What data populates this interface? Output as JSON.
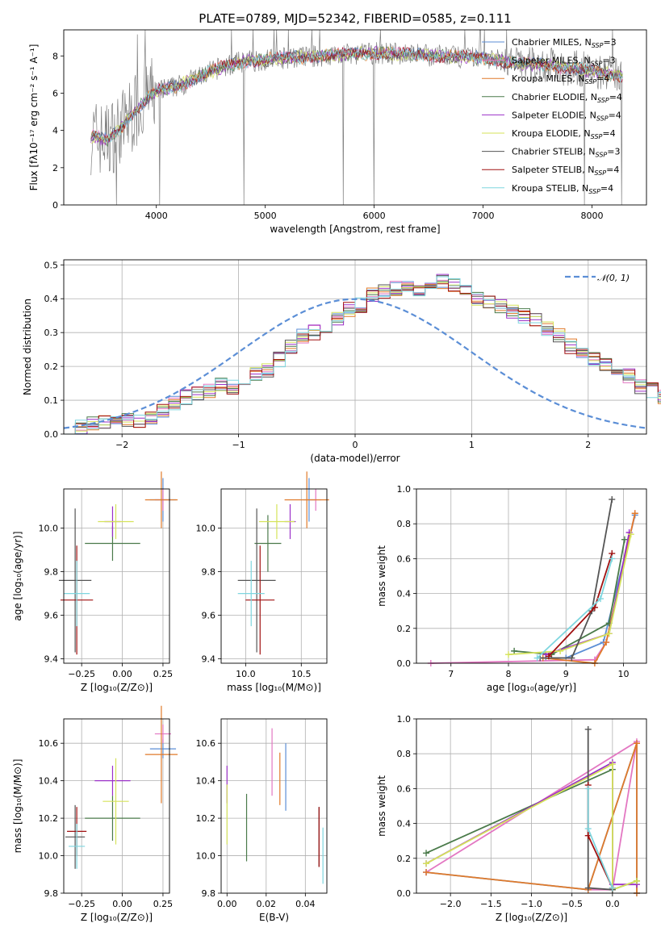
{
  "title": "PLATE=0789, MJD=52342, FIBERID=0585, z=0.111",
  "palette": {
    "chabrier_miles": "#5b8ed6",
    "salpeter_miles": "#e377c2",
    "kroupa_miles": "#e07a2a",
    "chabrier_elodie": "#4a7a4a",
    "salpeter_elodie": "#9b30c8",
    "kroupa_elodie": "#d5e35a",
    "chabrier_stelib": "#555555",
    "salpeter_stelib": "#a01010",
    "kroupa_stelib": "#7ed6df",
    "data": "#808080",
    "gauss": "#5b8ed6"
  },
  "chart_data": [
    {
      "id": "spectrum",
      "type": "line",
      "xlabel": "wavelength [Angstrom, rest frame]",
      "ylabel": "Flux [fλ10⁻¹⁷ erg cm⁻² s⁻¹ A⁻¹]",
      "xlim": [
        3150,
        8500
      ],
      "ylim": [
        0,
        9.4
      ],
      "xticks": [
        "4000",
        "5000",
        "6000",
        "7000",
        "8000"
      ],
      "yticks": [
        "0",
        "2",
        "4",
        "6",
        "8"
      ],
      "grid": false,
      "legend_position": "top-right",
      "continuum_points": [
        [
          3400,
          3.7
        ],
        [
          3550,
          3.5
        ],
        [
          3700,
          4.3
        ],
        [
          3800,
          5.0
        ],
        [
          3900,
          5.6
        ],
        [
          4000,
          6.1
        ],
        [
          4200,
          6.4
        ],
        [
          4400,
          6.9
        ],
        [
          4600,
          7.4
        ],
        [
          4800,
          7.7
        ],
        [
          5000,
          7.8
        ],
        [
          5200,
          7.9
        ],
        [
          5500,
          8.0
        ],
        [
          5800,
          8.1
        ],
        [
          6000,
          8.15
        ],
        [
          6300,
          8.1
        ],
        [
          6600,
          8.0
        ],
        [
          7000,
          7.9
        ],
        [
          7300,
          7.6
        ],
        [
          7600,
          7.5
        ],
        [
          8000,
          7.2
        ],
        [
          8280,
          6.9
        ]
      ],
      "series": [
        {
          "label": "Chabrier MILES, N",
          "sub": "SSP",
          "suffix": "=3",
          "color_key": "chabrier_miles"
        },
        {
          "label": "Salpeter MILES, N",
          "sub": "SSP",
          "suffix": "=3",
          "color_key": "salpeter_miles"
        },
        {
          "label": "Kroupa MILES, N",
          "sub": "SSP",
          "suffix": "=4",
          "color_key": "kroupa_miles"
        },
        {
          "label": "Chabrier ELODIE, N",
          "sub": "SSP",
          "suffix": "=4",
          "color_key": "chabrier_elodie"
        },
        {
          "label": "Salpeter ELODIE, N",
          "sub": "SSP",
          "suffix": "=4",
          "color_key": "salpeter_elodie"
        },
        {
          "label": "Kroupa ELODIE, N",
          "sub": "SSP",
          "suffix": "=4",
          "color_key": "kroupa_elodie"
        },
        {
          "label": "Chabrier STELIB, N",
          "sub": "SSP",
          "suffix": "=3",
          "color_key": "chabrier_stelib"
        },
        {
          "label": "Salpeter STELIB, N",
          "sub": "SSP",
          "suffix": "=4",
          "color_key": "salpeter_stelib"
        },
        {
          "label": "Kroupa STELIB, N",
          "sub": "SSP",
          "suffix": "=4",
          "color_key": "kroupa_stelib"
        }
      ]
    },
    {
      "id": "residuals",
      "type": "line",
      "xlabel": "(data-model)/error",
      "ylabel": "Normed distribution",
      "xlim": [
        -2.5,
        2.5
      ],
      "ylim": [
        0,
        0.515
      ],
      "xticks": [
        "−2",
        "−1",
        "0",
        "1",
        "2"
      ],
      "yticks": [
        "0.0",
        "0.1",
        "0.2",
        "0.3",
        "0.4",
        "0.5"
      ],
      "grid": true,
      "legend_position": "top-right",
      "legend": "𝒩(0, 1)",
      "bin_width": 0.1,
      "bins_start": -2.5,
      "base_hist": [
        0.01,
        0.02,
        0.03,
        0.04,
        0.03,
        0.04,
        0.04,
        0.05,
        0.07,
        0.09,
        0.11,
        0.12,
        0.13,
        0.15,
        0.14,
        0.15,
        0.18,
        0.19,
        0.22,
        0.26,
        0.29,
        0.3,
        0.31,
        0.34,
        0.37,
        0.38,
        0.41,
        0.42,
        0.43,
        0.44,
        0.43,
        0.44,
        0.45,
        0.44,
        0.42,
        0.4,
        0.39,
        0.38,
        0.36,
        0.35,
        0.34,
        0.31,
        0.29,
        0.26,
        0.24,
        0.22,
        0.21,
        0.18,
        0.17,
        0.14,
        0.13,
        0.11,
        0.09,
        0.07,
        0.06,
        0.05,
        0.04,
        0.03,
        0.03,
        0.02
      ]
    },
    {
      "id": "age_vs_Z",
      "type": "scatter",
      "xlabel": "Z [log₁₀(Z/Z⊙)]",
      "ylabel": "age  [log₁₀(age/yr)]",
      "xlim": [
        -0.36,
        0.29
      ],
      "ylim": [
        9.38,
        10.18
      ],
      "xticks": [
        "−0.25",
        "0.00",
        "0.25"
      ],
      "xtick_values": [
        -0.25,
        0,
        0.25
      ],
      "yticks": [
        "9.4",
        "9.6",
        "9.8",
        "10.0"
      ],
      "ytick_values": [
        9.4,
        9.6,
        9.8,
        10.0
      ],
      "grid": true,
      "points": [
        {
          "c": "chabrier_miles",
          "x": 0.25,
          "y": 10.13,
          "xe": 0.08,
          "ye": 0.1
        },
        {
          "c": "salpeter_miles",
          "x": 0.25,
          "y": 10.13,
          "xe": 0.05,
          "ye": 0.05
        },
        {
          "c": "kroupa_miles",
          "x": 0.24,
          "y": 10.13,
          "xe": 0.1,
          "ye": 0.13
        },
        {
          "c": "chabrier_elodie",
          "x": -0.06,
          "y": 9.93,
          "xe": 0.17,
          "ye": 0.08
        },
        {
          "c": "salpeter_elodie",
          "x": -0.06,
          "y": 10.03,
          "xe": 0.05,
          "ye": 0.07
        },
        {
          "c": "kroupa_elodie",
          "x": -0.04,
          "y": 10.03,
          "xe": 0.11,
          "ye": 0.08
        },
        {
          "c": "chabrier_stelib",
          "x": -0.29,
          "y": 9.76,
          "xe": 0.1,
          "ye": 0.33
        },
        {
          "c": "salpeter_stelib",
          "x": -0.28,
          "y": 9.67,
          "xe": 0.1,
          "ye": 0.25
        },
        {
          "c": "kroupa_stelib",
          "x": -0.28,
          "y": 9.7,
          "xe": 0.08,
          "ye": 0.15
        }
      ]
    },
    {
      "id": "age_vs_mass",
      "type": "scatter",
      "xlabel": "mass [log₁₀(M/M⊙)]",
      "ylabel": "",
      "xlim": [
        9.78,
        10.73
      ],
      "ylim": [
        9.38,
        10.18
      ],
      "xticks": [
        "10.0",
        "10.5"
      ],
      "xtick_values": [
        10.0,
        10.5
      ],
      "yticks": [
        "9.4",
        "9.6",
        "9.8",
        "10.0"
      ],
      "ytick_values": [
        9.4,
        9.6,
        9.8,
        10.0
      ],
      "grid": true,
      "points": [
        {
          "c": "chabrier_miles",
          "x": 10.57,
          "y": 10.13,
          "xe": 0.05,
          "ye": 0.1
        },
        {
          "c": "salpeter_miles",
          "x": 10.63,
          "y": 10.13,
          "xe": 0.05,
          "ye": 0.05
        },
        {
          "c": "kroupa_miles",
          "x": 10.55,
          "y": 10.13,
          "xe": 0.2,
          "ye": 0.13
        },
        {
          "c": "chabrier_elodie",
          "x": 10.2,
          "y": 9.93,
          "xe": 0.12,
          "ye": 0.13
        },
        {
          "c": "salpeter_elodie",
          "x": 10.4,
          "y": 10.03,
          "xe": 0.05,
          "ye": 0.08
        },
        {
          "c": "kroupa_elodie",
          "x": 10.28,
          "y": 10.03,
          "xe": 0.16,
          "ye": 0.08
        },
        {
          "c": "chabrier_stelib",
          "x": 10.1,
          "y": 9.76,
          "xe": 0.17,
          "ye": 0.33
        },
        {
          "c": "salpeter_stelib",
          "x": 10.13,
          "y": 9.67,
          "xe": 0.13,
          "ye": 0.25
        },
        {
          "c": "kroupa_stelib",
          "x": 10.05,
          "y": 9.7,
          "xe": 0.12,
          "ye": 0.15
        }
      ]
    },
    {
      "id": "weight_vs_age",
      "type": "line",
      "xlabel": "age  [log₁₀(age/yr)]",
      "ylabel": "mass weight",
      "xlim": [
        6.4,
        10.4
      ],
      "ylim": [
        0,
        1.0
      ],
      "xticks": [
        "7",
        "8",
        "9",
        "10"
      ],
      "xtick_values": [
        7,
        8,
        9,
        10
      ],
      "yticks": [
        "0.0",
        "0.2",
        "0.4",
        "0.6",
        "0.8",
        "1.0"
      ],
      "ytick_values": [
        0,
        0.2,
        0.4,
        0.6,
        0.8,
        1.0
      ],
      "grid": true,
      "series": [
        {
          "c": "chabrier_miles",
          "pts": [
            [
              8.65,
              0.03
            ],
            [
              9.0,
              0.03
            ],
            [
              9.65,
              0.12
            ],
            [
              10.2,
              0.85
            ]
          ]
        },
        {
          "c": "salpeter_miles",
          "pts": [
            [
              6.65,
              0.0
            ],
            [
              9.5,
              0.02
            ],
            [
              9.7,
              0.12
            ],
            [
              10.2,
              0.86
            ]
          ]
        },
        {
          "c": "kroupa_miles",
          "pts": [
            [
              8.6,
              0.03
            ],
            [
              9.5,
              0.0
            ],
            [
              9.7,
              0.12
            ],
            [
              10.2,
              0.86
            ]
          ]
        },
        {
          "c": "chabrier_elodie",
          "pts": [
            [
              8.1,
              0.07
            ],
            [
              8.75,
              0.05
            ],
            [
              9.75,
              0.23
            ],
            [
              10.02,
              0.71
            ]
          ]
        },
        {
          "c": "salpeter_elodie",
          "pts": [
            [
              8.65,
              0.05
            ],
            [
              9.75,
              0.17
            ],
            [
              10.1,
              0.75
            ]
          ]
        },
        {
          "c": "kroupa_elodie",
          "pts": [
            [
              8.0,
              0.05
            ],
            [
              8.9,
              0.07
            ],
            [
              9.75,
              0.17
            ],
            [
              10.13,
              0.74
            ]
          ]
        },
        {
          "c": "chabrier_stelib",
          "pts": [
            [
              8.55,
              0.03
            ],
            [
              9.1,
              0.03
            ],
            [
              9.45,
              0.3
            ],
            [
              9.8,
              0.94
            ]
          ]
        },
        {
          "c": "salpeter_stelib",
          "pts": [
            [
              8.7,
              0.04
            ],
            [
              9.5,
              0.32
            ],
            [
              9.8,
              0.63
            ]
          ]
        },
        {
          "c": "kroupa_stelib",
          "pts": [
            [
              8.5,
              0.03
            ],
            [
              9.6,
              0.37
            ],
            [
              9.8,
              0.6
            ]
          ]
        }
      ]
    },
    {
      "id": "mass_vs_Z",
      "type": "scatter",
      "xlabel": "Z [log₁₀(Z/Z⊙)]",
      "ylabel": "mass [log₁₀(M/M⊙)]",
      "xlim": [
        -0.36,
        0.29
      ],
      "ylim": [
        9.8,
        10.73
      ],
      "xticks": [
        "−0.25",
        "0.00",
        "0.25"
      ],
      "xtick_values": [
        -0.25,
        0,
        0.25
      ],
      "yticks": [
        "9.8",
        "10.0",
        "10.2",
        "10.4",
        "10.6"
      ],
      "ytick_values": [
        9.8,
        10.0,
        10.2,
        10.4,
        10.6
      ],
      "grid": true,
      "points": [
        {
          "c": "chabrier_miles",
          "x": 0.25,
          "y": 10.57,
          "xe": 0.08,
          "ye": 0.05
        },
        {
          "c": "salpeter_miles",
          "x": 0.25,
          "y": 10.65,
          "xe": 0.05,
          "ye": 0.05
        },
        {
          "c": "kroupa_miles",
          "x": 0.24,
          "y": 10.54,
          "xe": 0.1,
          "ye": 0.26
        },
        {
          "c": "chabrier_elodie",
          "x": -0.06,
          "y": 10.2,
          "xe": 0.17,
          "ye": 0.12
        },
        {
          "c": "salpeter_elodie",
          "x": -0.06,
          "y": 10.4,
          "xe": 0.11,
          "ye": 0.08
        },
        {
          "c": "kroupa_elodie",
          "x": -0.04,
          "y": 10.29,
          "xe": 0.08,
          "ye": 0.23
        },
        {
          "c": "chabrier_stelib",
          "x": -0.29,
          "y": 10.1,
          "xe": 0.06,
          "ye": 0.17
        },
        {
          "c": "salpeter_stelib",
          "x": -0.28,
          "y": 10.13,
          "xe": 0.06,
          "ye": 0.13
        },
        {
          "c": "kroupa_stelib",
          "x": -0.28,
          "y": 10.05,
          "xe": 0.05,
          "ye": 0.12
        }
      ]
    },
    {
      "id": "mass_vs_ebv",
      "type": "scatter",
      "xlabel": "E(B-V)",
      "ylabel": "",
      "xlim": [
        -0.003,
        0.051
      ],
      "ylim": [
        9.8,
        10.73
      ],
      "xticks": [
        "0.00",
        "0.02",
        "0.04"
      ],
      "xtick_values": [
        0.0,
        0.02,
        0.04
      ],
      "yticks": [
        "9.8",
        "10.0",
        "10.2",
        "10.4",
        "10.6"
      ],
      "ytick_values": [
        9.8,
        10.0,
        10.2,
        10.4,
        10.6
      ],
      "grid": true,
      "points": [
        {
          "c": "chabrier_miles",
          "x": 0.03,
          "y": 10.42,
          "xe": 0,
          "ye": 0.18
        },
        {
          "c": "salpeter_miles",
          "x": 0.023,
          "y": 10.5,
          "xe": 0,
          "ye": 0.18
        },
        {
          "c": "kroupa_miles",
          "x": 0.027,
          "y": 10.41,
          "xe": 0,
          "ye": 0.14
        },
        {
          "c": "chabrier_elodie",
          "x": 0.01,
          "y": 10.15,
          "xe": 0,
          "ye": 0.18
        },
        {
          "c": "salpeter_elodie",
          "x": 0.0,
          "y": 10.38,
          "xe": 0,
          "ye": 0.1
        },
        {
          "c": "kroupa_elodie",
          "x": 0.0,
          "y": 10.22,
          "xe": 0,
          "ye": 0.16
        },
        {
          "c": "chabrier_stelib",
          "x": 0.047,
          "y": 10.1,
          "xe": 0,
          "ye": 0.16
        },
        {
          "c": "salpeter_stelib",
          "x": 0.047,
          "y": 10.1,
          "xe": 0,
          "ye": 0.16
        },
        {
          "c": "kroupa_stelib",
          "x": 0.049,
          "y": 10.0,
          "xe": 0,
          "ye": 0.15
        }
      ]
    },
    {
      "id": "weight_vs_Z",
      "type": "line",
      "xlabel": "Z [log₁₀(Z/Z⊙)]",
      "ylabel": "mass weight",
      "xlim": [
        -2.42,
        0.42
      ],
      "ylim": [
        0,
        1.0
      ],
      "xticks": [
        "−2.0",
        "−1.5",
        "−1.0",
        "−0.5",
        "0.0"
      ],
      "xtick_values": [
        -2.0,
        -1.5,
        -1.0,
        -0.5,
        0.0
      ],
      "yticks": [
        "0.0",
        "0.2",
        "0.4",
        "0.6",
        "0.8",
        "1.0"
      ],
      "ytick_values": [
        0,
        0.2,
        0.4,
        0.6,
        0.8,
        1.0
      ],
      "grid": true,
      "series": [
        {
          "c": "chabrier_miles",
          "pts": [
            [
              -2.3,
              0.12
            ],
            [
              -0.3,
              0.02
            ],
            [
              0.3,
              0.86
            ],
            [
              0.3,
              0.0
            ]
          ]
        },
        {
          "c": "salpeter_miles",
          "pts": [
            [
              -2.3,
              0.12
            ],
            [
              0.3,
              0.87
            ],
            [
              0.0,
              0.02
            ],
            [
              -0.3,
              0.02
            ]
          ]
        },
        {
          "c": "kroupa_miles",
          "pts": [
            [
              -2.3,
              0.12
            ],
            [
              -0.3,
              0.02
            ],
            [
              0.3,
              0.86
            ],
            [
              0.3,
              0.0
            ]
          ]
        },
        {
          "c": "chabrier_elodie",
          "pts": [
            [
              -2.3,
              0.23
            ],
            [
              0.0,
              0.71
            ],
            [
              0.0,
              0.02
            ],
            [
              0.3,
              0.07
            ]
          ]
        },
        {
          "c": "salpeter_elodie",
          "pts": [
            [
              -2.3,
              0.17
            ],
            [
              0.0,
              0.75
            ],
            [
              0.0,
              0.05
            ],
            [
              0.3,
              0.05
            ]
          ]
        },
        {
          "c": "kroupa_elodie",
          "pts": [
            [
              -2.3,
              0.17
            ],
            [
              0.0,
              0.74
            ],
            [
              0.0,
              0.02
            ],
            [
              0.3,
              0.07
            ]
          ]
        },
        {
          "c": "chabrier_stelib",
          "pts": [
            [
              -0.3,
              0.94
            ],
            [
              -0.3,
              0.03
            ],
            [
              0.0,
              0.02
            ]
          ]
        },
        {
          "c": "salpeter_stelib",
          "pts": [
            [
              -0.3,
              0.62
            ],
            [
              -0.3,
              0.33
            ],
            [
              0.0,
              0.03
            ]
          ]
        },
        {
          "c": "kroupa_stelib",
          "pts": [
            [
              -0.3,
              0.6
            ],
            [
              -0.3,
              0.37
            ],
            [
              0.0,
              0.03
            ]
          ]
        }
      ]
    }
  ]
}
